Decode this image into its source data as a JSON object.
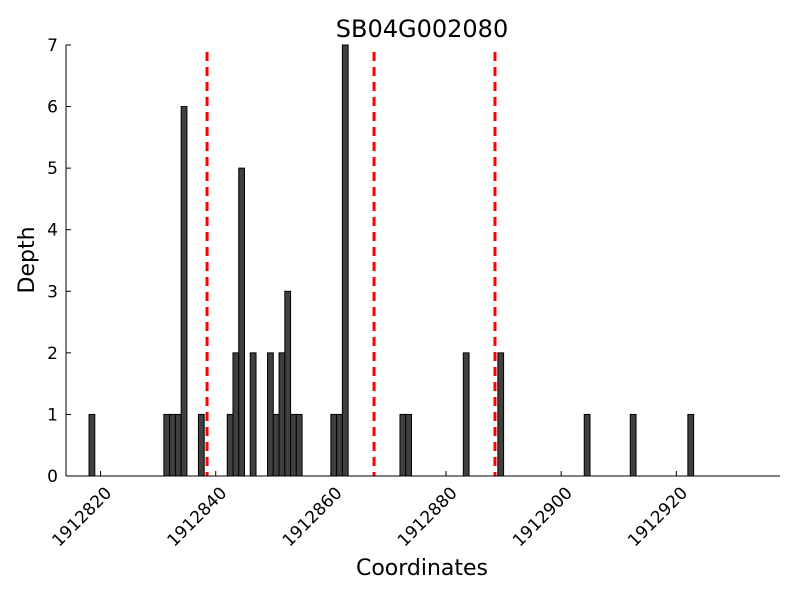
{
  "chart_data": {
    "type": "bar",
    "title": "SB04G002080",
    "xlabel": "Coordinates",
    "ylabel": "Depth",
    "xlim": [
      1912814,
      1912938
    ],
    "ylim": [
      0,
      7
    ],
    "x_ticks": [
      1912820,
      1912840,
      1912860,
      1912880,
      1912900,
      1912920
    ],
    "y_ticks": [
      0,
      1,
      2,
      3,
      4,
      5,
      6,
      7
    ],
    "grid": false,
    "bar_color": "#404040",
    "bar_edge_color": "#000000",
    "marker_color": "#ff0000",
    "markers": [
      1912838.5,
      1912867.5,
      1912888.5
    ],
    "bars": [
      {
        "x": 1912818,
        "y": 1
      },
      {
        "x": 1912831,
        "y": 1
      },
      {
        "x": 1912832,
        "y": 1
      },
      {
        "x": 1912833,
        "y": 1
      },
      {
        "x": 1912834,
        "y": 6
      },
      {
        "x": 1912837,
        "y": 1
      },
      {
        "x": 1912842,
        "y": 1
      },
      {
        "x": 1912843,
        "y": 2
      },
      {
        "x": 1912844,
        "y": 5
      },
      {
        "x": 1912846,
        "y": 2
      },
      {
        "x": 1912849,
        "y": 2
      },
      {
        "x": 1912850,
        "y": 1
      },
      {
        "x": 1912851,
        "y": 2
      },
      {
        "x": 1912852,
        "y": 3
      },
      {
        "x": 1912853,
        "y": 1
      },
      {
        "x": 1912854,
        "y": 1
      },
      {
        "x": 1912860,
        "y": 1
      },
      {
        "x": 1912861,
        "y": 1
      },
      {
        "x": 1912862,
        "y": 7
      },
      {
        "x": 1912872,
        "y": 1
      },
      {
        "x": 1912873,
        "y": 1
      },
      {
        "x": 1912883,
        "y": 2
      },
      {
        "x": 1912889,
        "y": 2
      },
      {
        "x": 1912904,
        "y": 1
      },
      {
        "x": 1912912,
        "y": 1
      },
      {
        "x": 1912922,
        "y": 1
      }
    ]
  }
}
